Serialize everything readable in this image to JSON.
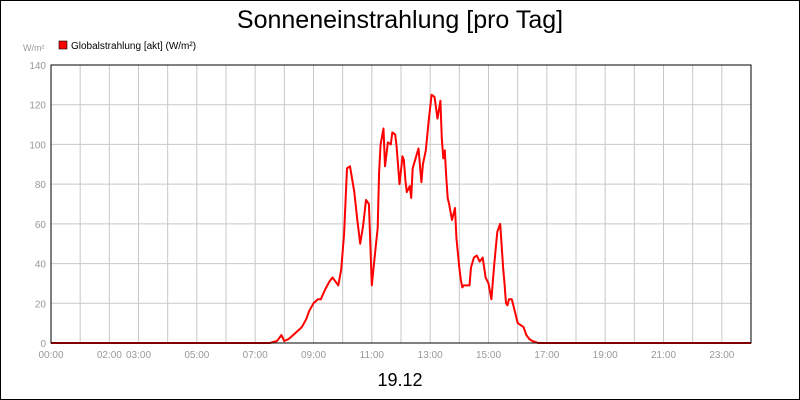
{
  "chart_data": {
    "type": "line",
    "title": "Sonneneinstrahlung [pro Tag]",
    "date_label": "19.12",
    "ylabel_unit": "W/m²",
    "legend": {
      "placement": "top-left",
      "color": "#ff0000",
      "label": "Globalstrahlung [akt] (W/m²)"
    },
    "xlim": [
      0,
      24
    ],
    "ylim": [
      0,
      140
    ],
    "grid": true,
    "x_tick_labels": [
      {
        "value": 0,
        "label": "00:00"
      },
      {
        "value": 2,
        "label": "02:00"
      },
      {
        "value": 3,
        "label": "03:00"
      },
      {
        "value": 5,
        "label": "05:00"
      },
      {
        "value": 7,
        "label": "07:00"
      },
      {
        "value": 9,
        "label": "09:00"
      },
      {
        "value": 11,
        "label": "11:00"
      },
      {
        "value": 13,
        "label": "13:00"
      },
      {
        "value": 15,
        "label": "15:00"
      },
      {
        "value": 17,
        "label": "17:00"
      },
      {
        "value": 19,
        "label": "19:00"
      },
      {
        "value": 21,
        "label": "21:00"
      },
      {
        "value": 23,
        "label": "23:00"
      }
    ],
    "y_ticks": [
      0,
      20,
      40,
      60,
      80,
      100,
      120,
      140
    ],
    "series": [
      {
        "name": "Globalstrahlung [akt] (W/m²)",
        "color": "#ff0000",
        "x": [
          0,
          7.5,
          7.75,
          7.9,
          8.0,
          8.15,
          8.3,
          8.45,
          8.6,
          8.75,
          8.85,
          9.0,
          9.15,
          9.25,
          9.4,
          9.55,
          9.65,
          9.75,
          9.85,
          9.95,
          10.05,
          10.15,
          10.25,
          10.4,
          10.5,
          10.6,
          10.7,
          10.8,
          10.9,
          11.0,
          11.1,
          11.2,
          11.25,
          11.3,
          11.4,
          11.45,
          11.55,
          11.65,
          11.7,
          11.8,
          11.85,
          11.95,
          12.05,
          12.1,
          12.15,
          12.2,
          12.3,
          12.35,
          12.4,
          12.5,
          12.6,
          12.7,
          12.75,
          12.85,
          12.95,
          13.05,
          13.15,
          13.25,
          13.35,
          13.4,
          13.45,
          13.5,
          13.55,
          13.6,
          13.65,
          13.75,
          13.85,
          13.9,
          14.0,
          14.05,
          14.1,
          14.15,
          14.25,
          14.35,
          14.4,
          14.5,
          14.6,
          14.7,
          14.8,
          14.9,
          15.0,
          15.1,
          15.2,
          15.3,
          15.4,
          15.5,
          15.55,
          15.6,
          15.65,
          15.7,
          15.8,
          15.9,
          16.0,
          16.1,
          16.2,
          16.3,
          16.4,
          16.5,
          16.7,
          17.0,
          24.0
        ],
        "values": [
          0,
          0,
          1,
          4,
          1,
          2,
          4,
          6,
          8,
          12,
          16,
          20,
          22,
          22,
          27,
          31,
          33,
          31,
          29,
          37,
          55,
          88,
          89,
          76,
          62,
          50,
          59,
          72,
          70,
          29,
          44,
          58,
          86,
          100,
          108,
          89,
          101,
          100,
          106,
          105,
          99,
          80,
          94,
          92,
          82,
          76,
          79,
          73,
          88,
          93,
          98,
          81,
          90,
          97,
          112,
          125,
          124,
          113,
          122,
          103,
          93,
          97,
          84,
          73,
          70,
          62,
          68,
          53,
          38,
          32,
          28,
          29,
          29,
          29,
          38,
          43,
          44,
          41,
          43,
          33,
          30,
          22,
          40,
          56,
          60,
          38,
          30,
          20,
          19,
          22,
          22,
          16,
          10,
          9,
          8,
          4,
          2,
          1,
          0,
          0,
          0
        ]
      }
    ]
  }
}
